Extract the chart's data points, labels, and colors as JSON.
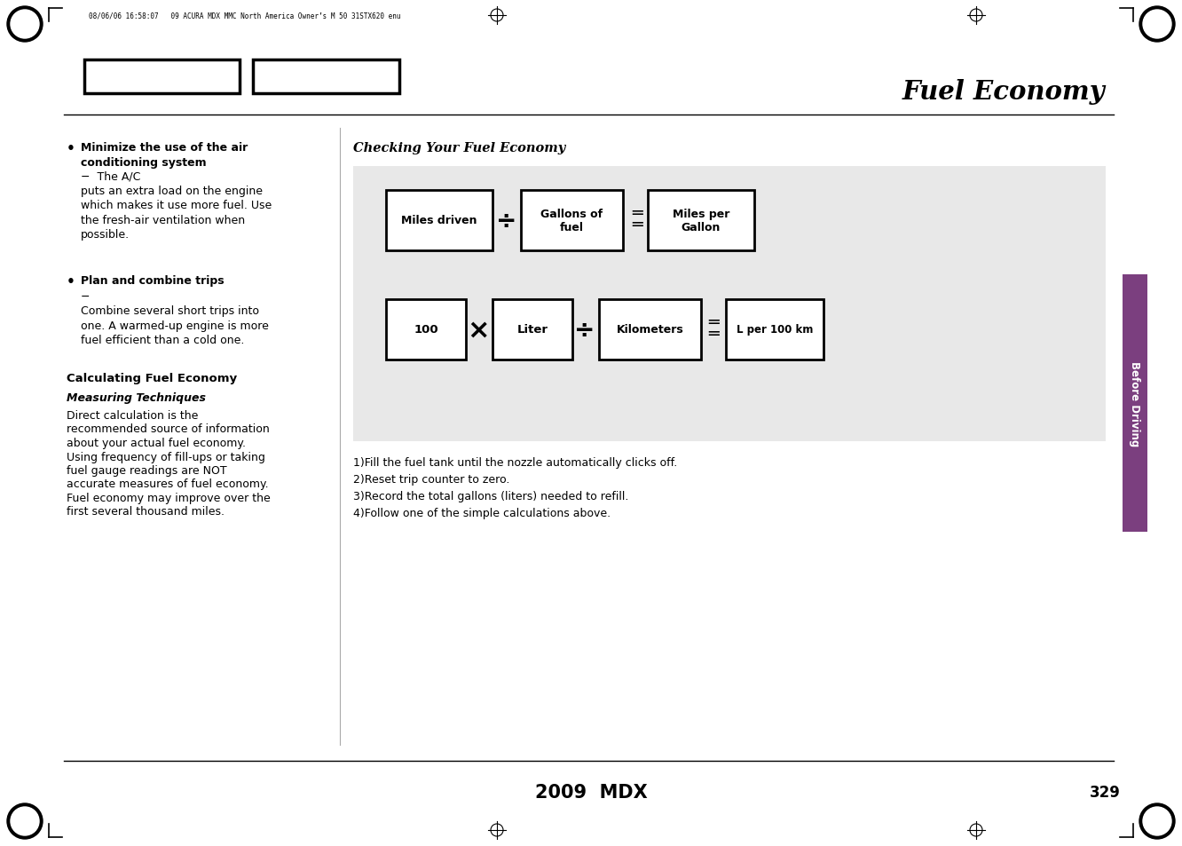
{
  "page_bg": "#ffffff",
  "header_text": "08/06/06 16:58:07   09 ACURA MDX MMC North America Owner’s M 50 31STX620 enu",
  "title": "Fuel Economy",
  "section_title": "Checking Your Fuel Economy",
  "page_number": "329",
  "footer_text": "2009  MDX",
  "sidebar_color": "#7b3f7f",
  "sidebar_text": "Before Driving",
  "calc_title": "Calculating Fuel Economy",
  "meas_title": "Measuring Techniques",
  "meas_lines": [
    "Direct calculation is the",
    "recommended source of information",
    "about your actual fuel economy.",
    "Using frequency of fill-ups or taking",
    "fuel gauge readings are NOT",
    "accurate measures of fuel economy.",
    "Fuel economy may improve over the",
    "first several thousand miles."
  ],
  "diagram_bg": "#e8e8e8",
  "instructions": [
    "1)Fill the fuel tank until the nozzle automatically clicks off.",
    "2)Reset trip counter to zero.",
    "3)Record the total gallons (liters) needed to refill.",
    "4)Follow one of the simple calculations above."
  ]
}
